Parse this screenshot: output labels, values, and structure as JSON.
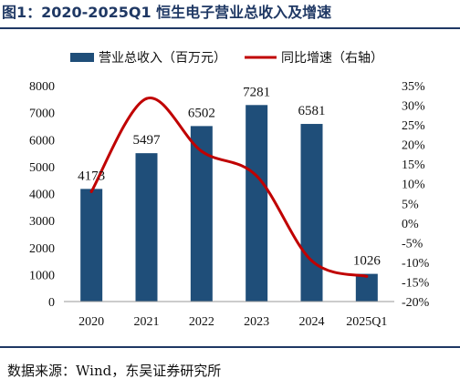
{
  "figure": {
    "title": "图1：2020-2025Q1 恒生电子营业总收入及增速",
    "source": "数据来源：Wind，东吴证券研究所"
  },
  "chart_data": {
    "type": "bar",
    "categories": [
      "2020",
      "2021",
      "2022",
      "2023",
      "2024",
      "2025Q1"
    ],
    "series": [
      {
        "name": "营业总收入（百万元）",
        "type": "bar",
        "axis": "left",
        "values": [
          4173,
          5497,
          6502,
          7281,
          6581,
          1026
        ],
        "color": "#1f4e79"
      },
      {
        "name": "同比增速（右轴）",
        "type": "line",
        "axis": "right",
        "values": [
          8.0,
          31.7,
          18.3,
          12.0,
          -9.6,
          -13.6
        ],
        "color": "#c00000"
      }
    ],
    "left_axis": {
      "min": 0,
      "max": 8000,
      "step": 1000
    },
    "right_axis": {
      "min": -20,
      "max": 35,
      "step": 5,
      "unit": "%"
    },
    "legend_position": "top",
    "grid": false
  }
}
